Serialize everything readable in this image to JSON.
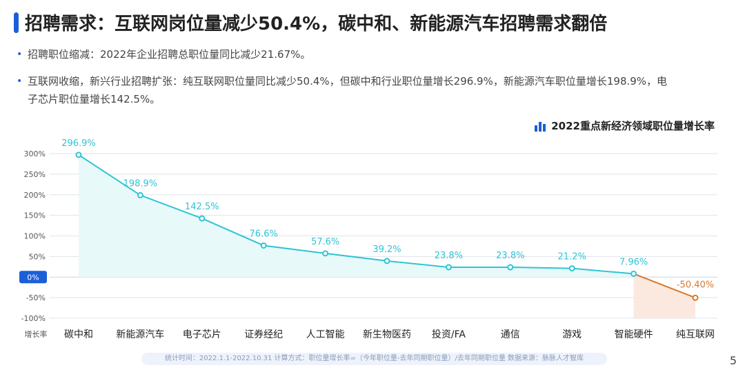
{
  "header": {
    "title": "招聘需求：互联网岗位量减少50.4%，碳中和、新能源汽车招聘需求翻倍"
  },
  "bullets": [
    "招聘职位缩减：2022年企业招聘总职位量同比减少21.67%。",
    "互联网收缩，新兴行业招聘扩张：纯互联网职位量同比减少50.4%，但碳中和行业职位量增长296.9%，新能源汽车职位量增长198.9%，电",
    "子芯片职位量增长142.5%。"
  ],
  "legend": {
    "label": "2022重点新经济领域职位量增长率",
    "icon": "bar-chart-icon"
  },
  "footer": {
    "text": "统计时间：2022.1.1-2022.10.31    计算方式：职位量增长率=（今年职位量-去年同期职位量）/去年同期职位量    数据来源：脉脉人才智库"
  },
  "page_number": "5",
  "colors": {
    "accent": "#1a5fd8",
    "line_positive": "#2ec4d4",
    "line_negative": "#d9782a",
    "area_positive": "#e6f8fa",
    "area_negative": "#fbe5dc"
  },
  "chart_data": {
    "type": "line",
    "categories": [
      "碳中和",
      "新能源汽车",
      "电子芯片",
      "证券经纪",
      "人工智能",
      "新生物医药",
      "投资/FA",
      "通信",
      "游戏",
      "智能硬件",
      "纯互联网"
    ],
    "values": [
      296.9,
      198.9,
      142.5,
      76.6,
      57.6,
      39.2,
      23.8,
      23.8,
      21.2,
      7.96,
      -50.4
    ],
    "data_labels": [
      "296.9%",
      "198.9%",
      "142.5%",
      "76.6%",
      "57.6%",
      "39.2%",
      "23.8%",
      "23.8%",
      "21.2%",
      "7.96%",
      "-50.40%"
    ],
    "ylabel": "增长率",
    "ylim": [
      -100,
      300
    ],
    "yticks": [
      "300%",
      "250%",
      "200%",
      "150%",
      "100%",
      "50%",
      "0%",
      "-50%",
      "-100%"
    ],
    "grid": true
  }
}
